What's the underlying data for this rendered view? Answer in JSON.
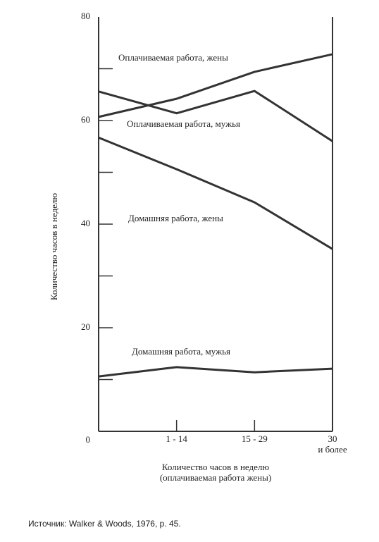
{
  "chart_data": {
    "type": "line",
    "ylabel": "Количество часов в неделю",
    "xlabel": "Количество часов в  неделю\n(оплачиваемая работа жены)",
    "source": "Источник: Walker & Woods, 1976, p. 45.",
    "categories": [
      null,
      "1 - 14",
      "15 - 29",
      "30\nи более"
    ],
    "ylim": [
      0,
      80
    ],
    "yticks": [
      0,
      20,
      40,
      60,
      80
    ],
    "minor_yticks": [
      10,
      30,
      50,
      70
    ],
    "series": [
      {
        "name": "Оплачиваемая работа,  жены",
        "color": "#333333",
        "values": [
          60.7,
          64.2,
          69.4,
          72.8
        ]
      },
      {
        "name": "Оплачиваемая работа,  мужья",
        "color": "#333333",
        "values": [
          65.6,
          61.4,
          65.7,
          56
        ]
      },
      {
        "name": "Домашняя работа, жены",
        "color": "#333333",
        "values": [
          56.7,
          50.6,
          44.2,
          35.2
        ]
      },
      {
        "name": "Домашняя работа, мужья",
        "color": "#333333",
        "values": [
          10.6,
          12.4,
          11.4,
          12.1
        ]
      }
    ]
  }
}
